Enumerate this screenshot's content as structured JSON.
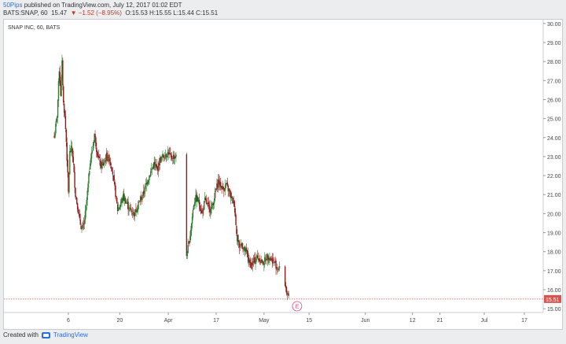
{
  "header": {
    "author": "50Pips",
    "published_text": " published on TradingView.com, July 12, 2017 01:02 EDT",
    "symbol_line": "BATS:SNAP, 60",
    "last": "15.47",
    "change": "▼ −1.52 (−8.95%)",
    "ohlc": "O:15.53 H:15.55 L:15.44 C:15.51"
  },
  "footer": {
    "created_with": "Created with",
    "brand": "TradingView"
  },
  "colors": {
    "up": "#2e7d32",
    "down": "#8e1b1b",
    "price_line": "#d9534f",
    "earnings_marker": "#e0447a"
  },
  "chart_data": {
    "type": "candlestick",
    "title": "SNAP INC, 60, BATS",
    "ylim": [
      14.8,
      30.2
    ],
    "y_ticks": [
      "15.00",
      "16.00",
      "17.00",
      "18.00",
      "19.00",
      "20.00",
      "21.00",
      "22.00",
      "23.00",
      "24.00",
      "25.00",
      "26.00",
      "27.00",
      "28.00",
      "29.00",
      "30.00"
    ],
    "x_ticks": [
      {
        "label": "6",
        "bar": 20
      },
      {
        "label": "20",
        "bar": 93
      },
      {
        "label": "Apr",
        "bar": 162
      },
      {
        "label": "17",
        "bar": 230
      },
      {
        "label": "May",
        "bar": 298
      },
      {
        "label": "15",
        "bar": 362
      },
      {
        "label": "Jun",
        "bar": 442
      },
      {
        "label": "12",
        "bar": 509
      },
      {
        "label": "21",
        "bar": 548
      },
      {
        "label": "Jul",
        "bar": 611
      },
      {
        "label": "17",
        "bar": 668
      }
    ],
    "bar_count": 672,
    "last_price": "15.51",
    "earnings_marker": {
      "label": "E",
      "bar": 345
    },
    "anchors": [
      [
        0,
        24.0
      ],
      [
        4,
        25.2
      ],
      [
        7,
        27.6
      ],
      [
        9,
        26.3
      ],
      [
        11,
        27.9
      ],
      [
        13,
        25.8
      ],
      [
        15,
        25.1
      ],
      [
        17,
        23.8
      ],
      [
        20,
        21.1
      ],
      [
        22,
        23.2
      ],
      [
        25,
        23.5
      ],
      [
        27,
        22.6
      ],
      [
        30,
        21.0
      ],
      [
        33,
        20.4
      ],
      [
        36,
        19.6
      ],
      [
        39,
        19.2
      ],
      [
        42,
        19.4
      ],
      [
        45,
        20.3
      ],
      [
        48,
        21.5
      ],
      [
        51,
        22.8
      ],
      [
        54,
        23.3
      ],
      [
        57,
        24.2
      ],
      [
        60,
        23.4
      ],
      [
        63,
        22.9
      ],
      [
        66,
        22.5
      ],
      [
        70,
        22.6
      ],
      [
        74,
        23.0
      ],
      [
        78,
        22.9
      ],
      [
        82,
        22.4
      ],
      [
        86,
        21.3
      ],
      [
        90,
        20.2
      ],
      [
        94,
        20.5
      ],
      [
        98,
        20.9
      ],
      [
        102,
        20.6
      ],
      [
        106,
        20.3
      ],
      [
        110,
        20.1
      ],
      [
        114,
        20.0
      ],
      [
        118,
        20.4
      ],
      [
        122,
        20.7
      ],
      [
        126,
        21.0
      ],
      [
        130,
        21.5
      ],
      [
        134,
        21.9
      ],
      [
        138,
        22.3
      ],
      [
        142,
        22.6
      ],
      [
        146,
        22.3
      ],
      [
        150,
        22.8
      ],
      [
        154,
        23.0
      ],
      [
        158,
        23.1
      ],
      [
        162,
        23.2
      ],
      [
        166,
        22.9
      ],
      [
        170,
        23.0
      ],
      [
        173,
        23.0
      ],
      [
        188,
        17.8
      ],
      [
        190,
        18.2
      ],
      [
        192,
        18.6
      ],
      [
        195,
        19.5
      ],
      [
        198,
        20.5
      ],
      [
        201,
        20.8
      ],
      [
        204,
        20.7
      ],
      [
        207,
        20.4
      ],
      [
        210,
        20.0
      ],
      [
        214,
        20.7
      ],
      [
        218,
        20.4
      ],
      [
        222,
        20.2
      ],
      [
        226,
        20.6
      ],
      [
        230,
        21.3
      ],
      [
        233,
        21.7
      ],
      [
        236,
        21.5
      ],
      [
        240,
        21.3
      ],
      [
        244,
        21.5
      ],
      [
        248,
        21.2
      ],
      [
        252,
        20.8
      ],
      [
        256,
        20.5
      ],
      [
        258,
        19.4
      ],
      [
        260,
        18.7
      ],
      [
        263,
        18.3
      ],
      [
        266,
        18.4
      ],
      [
        270,
        18.1
      ],
      [
        274,
        17.9
      ],
      [
        277,
        17.4
      ],
      [
        280,
        17.3
      ],
      [
        284,
        17.5
      ],
      [
        288,
        17.7
      ],
      [
        292,
        17.6
      ],
      [
        296,
        17.4
      ],
      [
        300,
        17.6
      ],
      [
        304,
        17.8
      ],
      [
        308,
        17.6
      ],
      [
        312,
        17.5
      ],
      [
        316,
        17.2
      ],
      [
        320,
        17.1
      ],
      [
        328,
        16.3
      ],
      [
        330,
        15.9
      ],
      [
        333,
        15.5
      ]
    ],
    "gaps": [
      [
        173,
        188
      ],
      [
        320,
        328
      ]
    ],
    "notes": "Hourly candles, anchors give approximate close path [bar_index, price] in USD"
  }
}
